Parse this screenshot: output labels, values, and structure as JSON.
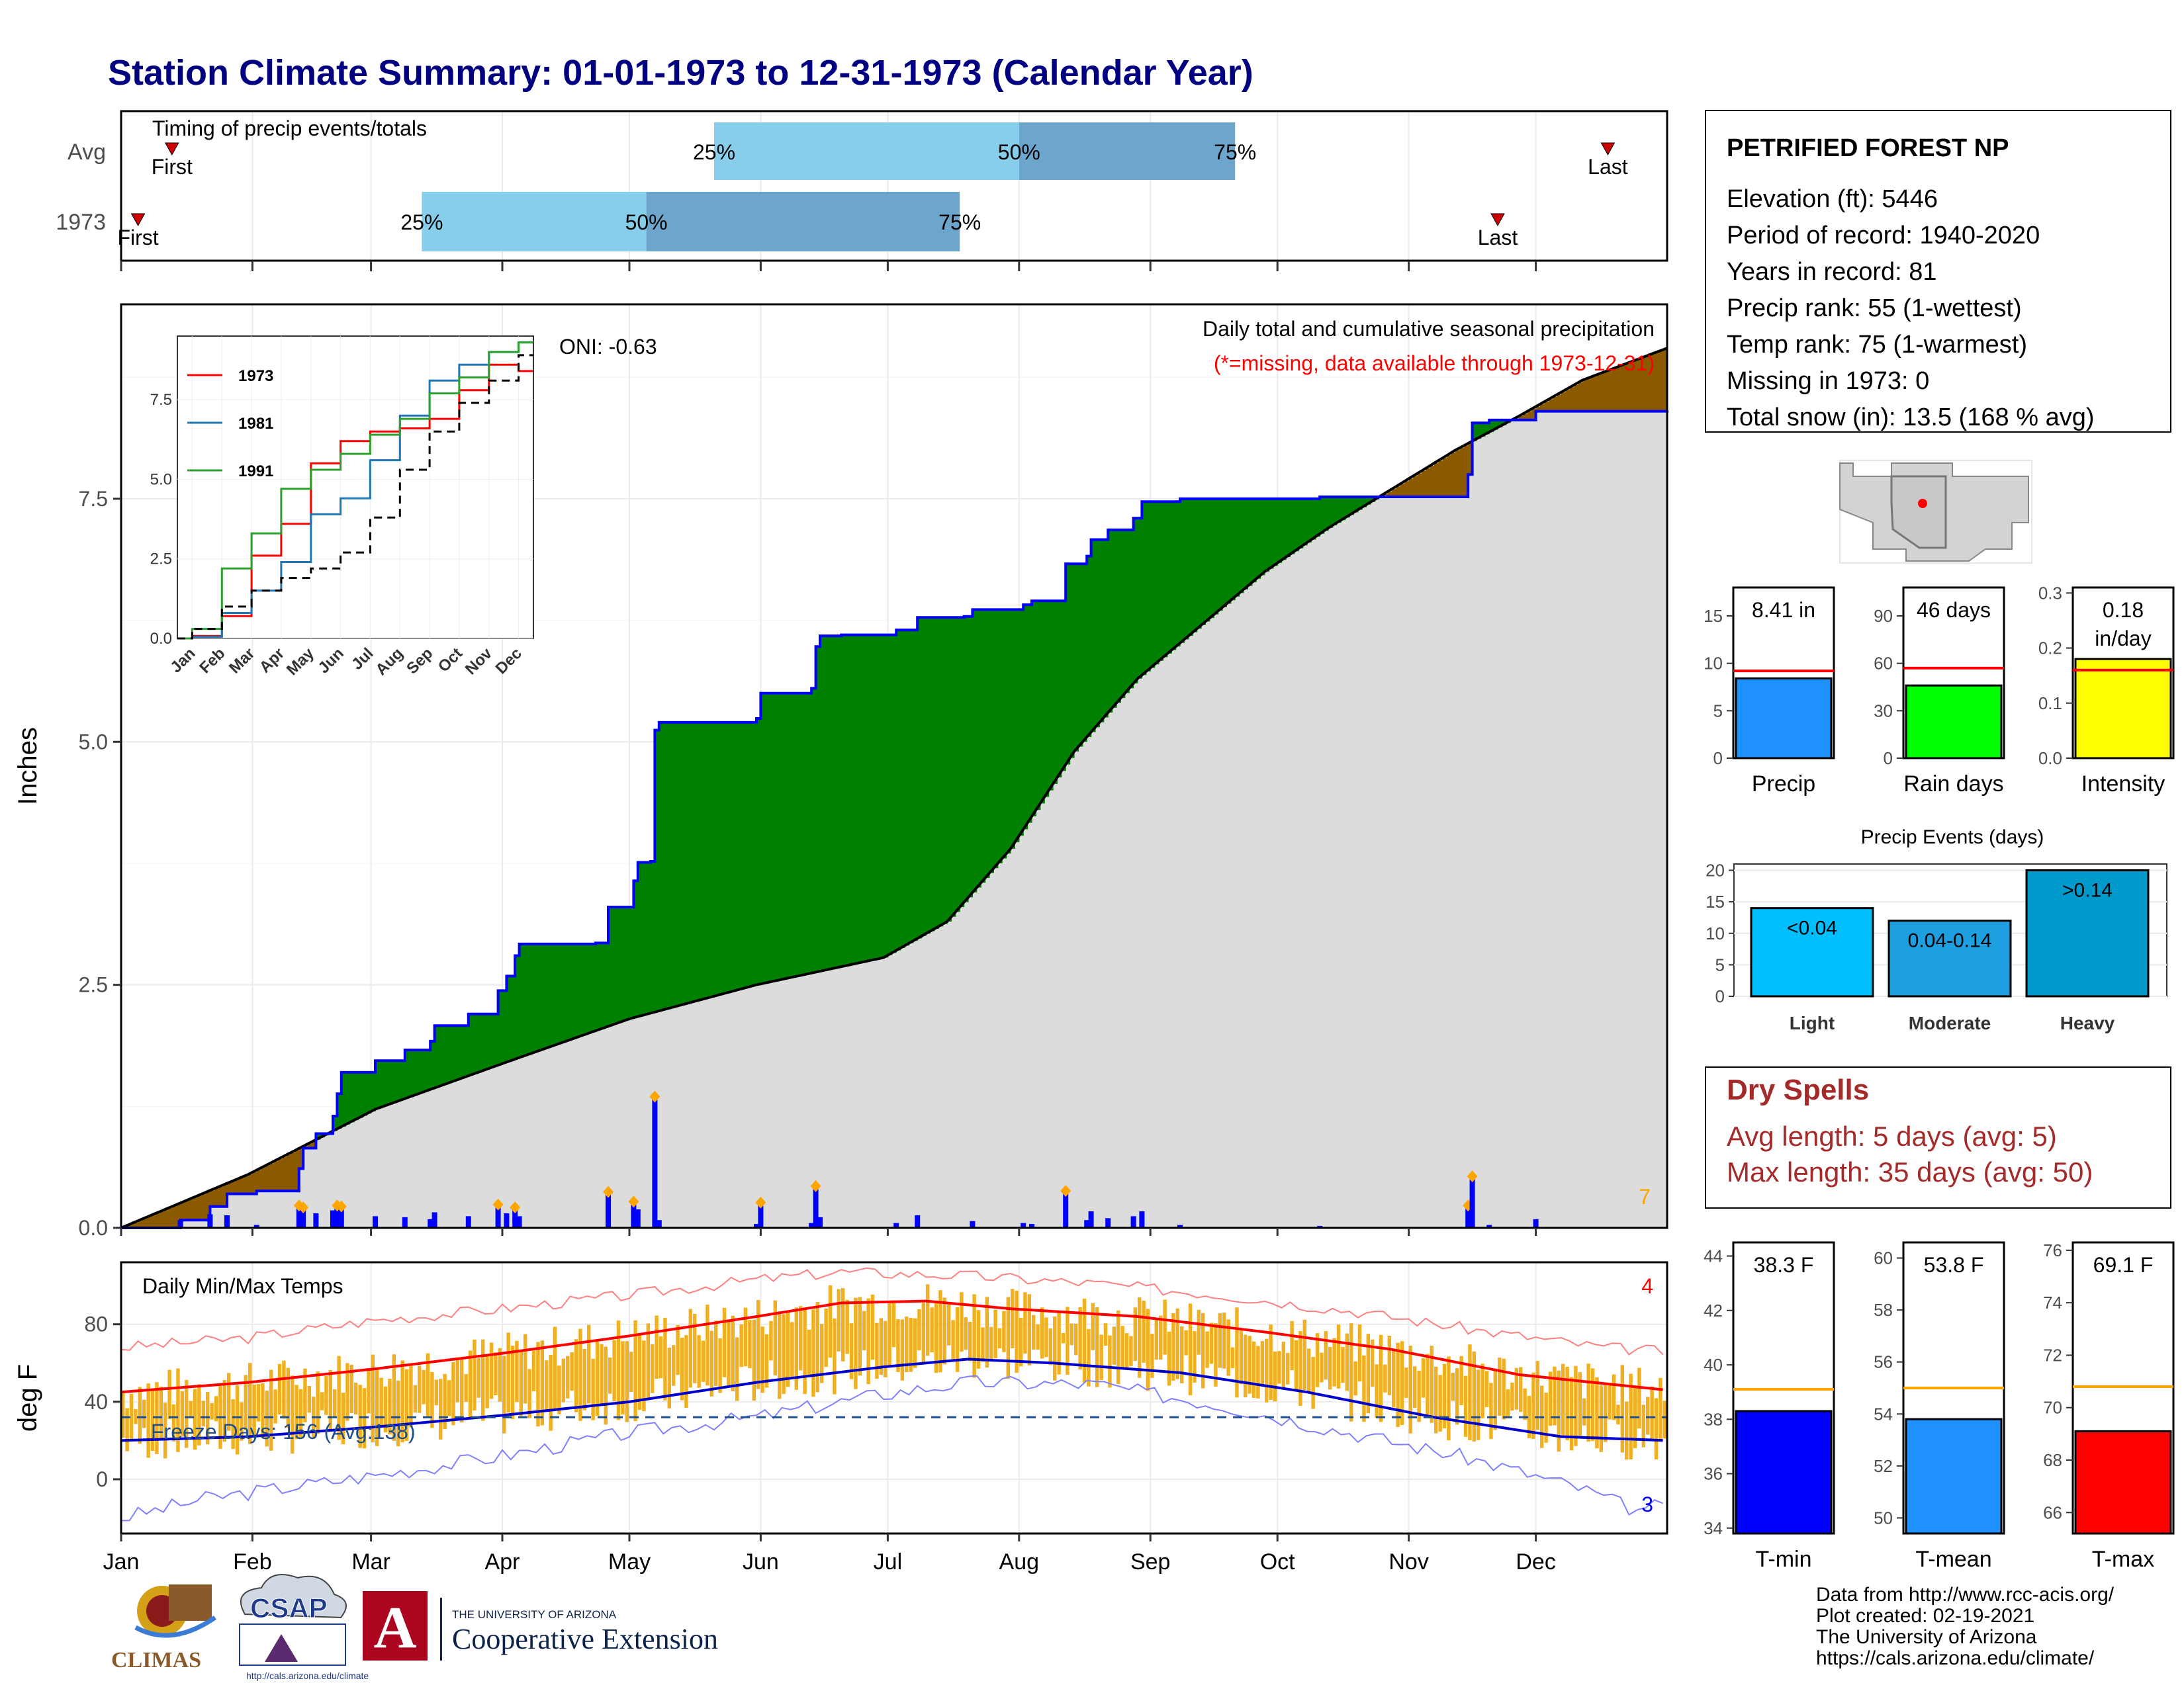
{
  "page": {
    "title": "Station Climate Summary: 01-01-1973 to 12-31-1973 (Calendar Year)",
    "footer_lines": [
      "Data from http://www.rcc-acis.org/",
      "Plot created: 02-19-2021",
      "The University of Arizona",
      "https://cals.arizona.edu/climate/"
    ]
  },
  "colors": {
    "title": "#000080",
    "above_avg": "#008000",
    "below_avg": "#8B5A00",
    "avg_fill": "#DCDCDC",
    "cum_line": "#0000FF",
    "daily_bar": "#0000FF",
    "temp_bar": "#F0B020",
    "tmax_avg": "#FF0000",
    "tmin_avg": "#0000CC",
    "q_light": "#87CEEB",
    "q_dark": "#6CA6CD",
    "red": "#FF0000",
    "orange": "#FFA500"
  },
  "timing": {
    "label": "Timing of precip events/totals",
    "rows": [
      {
        "name": "Avg",
        "first_label": "First",
        "last_label": "Last",
        "first_day": 12,
        "last_day": 351,
        "p25_label": "25%",
        "p50_label": "50%",
        "p75_label": "75%",
        "p25": 140,
        "p50": 212,
        "p75": 263
      },
      {
        "name": "1973",
        "first_label": "First",
        "last_label": "Last",
        "first_day": 4,
        "last_day": 325,
        "p25_label": "25%",
        "p50_label": "50%",
        "p75_label": "75%",
        "p25": 71,
        "p50": 124,
        "p75": 198
      }
    ]
  },
  "station": {
    "name": "PETRIFIED FOREST NP",
    "lines": [
      "Elevation (ft): 5446",
      "Period of record: 1940-2020",
      "Years in record: 81",
      "Precip rank: 55 (1-wettest)",
      "Temp rank: 75 (1-warmest)",
      "Missing in 1973: 0",
      "Total snow (in): 13.5 (168 % avg)"
    ]
  },
  "precip_panel": {
    "ylabel": "Inches",
    "title": "Daily total and cumulative seasonal precipitation",
    "subtitle": "(*=missing, data available through 1973-12-31)",
    "oni": "ONI: -0.63",
    "corner_count": "7",
    "inset_series": [
      "1973",
      "1981",
      "1991"
    ],
    "inset_colors": [
      "#FF0000",
      "#1F77B4",
      "#2CA02C"
    ]
  },
  "temp_panel": {
    "ylabel": "deg F",
    "title": "Daily Min/Max Temps",
    "freeze": "Freeze Days: 156 (Avg:138)",
    "count_top": "4",
    "count_bottom": "3"
  },
  "months": [
    "Jan",
    "Feb",
    "Mar",
    "Apr",
    "May",
    "Jun",
    "Jul",
    "Aug",
    "Sep",
    "Oct",
    "Nov",
    "Dec"
  ],
  "bars": {
    "precip": {
      "value_label": "8.41 in",
      "label": "Precip",
      "value": 8.41,
      "avg": 9.2,
      "ticks": [
        "0",
        "5",
        "10",
        "15"
      ],
      "max": 18,
      "color": "#1E90FF"
    },
    "raindays": {
      "value_label": "46 days",
      "label": "Rain days",
      "value": 46,
      "avg": 57,
      "ticks": [
        "0",
        "30",
        "60",
        "90"
      ],
      "max": 108,
      "color": "#00FF00"
    },
    "intensity": {
      "value_label": "0.18 in/day",
      "label": "Intensity",
      "value": 0.18,
      "avg": 0.16,
      "ticks": [
        "0.0",
        "0.1",
        "0.2",
        "0.3"
      ],
      "max": 0.3,
      "color": "#FFFF00"
    }
  },
  "events": {
    "title": "Precip Events (days)",
    "ticks": [
      "0",
      "5",
      "10",
      "15",
      "20"
    ],
    "items": [
      {
        "label": "Light",
        "value_label": "<0.04",
        "value": 14,
        "color": "#00BFFF"
      },
      {
        "label": "Moderate",
        "value_label": "0.04-0.14",
        "value": 12,
        "color": "#1EA0E0"
      },
      {
        "label": "Heavy",
        "value_label": ">0.14",
        "value": 20,
        "color": "#0099CC"
      }
    ]
  },
  "dry_spells": {
    "title": "Dry Spells",
    "avg_line": "Avg length: 5 days (avg: 5)",
    "max_line": "Max length: 35 days (avg: 50)"
  },
  "temps": {
    "tmin": {
      "value_label": "38.3 F",
      "label": "T-min",
      "value": 38.3,
      "avg": 39.1,
      "min": 33.8,
      "max": 44.5,
      "ticks": [
        "34",
        "36",
        "38",
        "40",
        "42",
        "44"
      ],
      "color": "#0000FF"
    },
    "tmean": {
      "value_label": "53.8 F",
      "label": "T-mean",
      "value": 53.8,
      "avg": 55.0,
      "min": 49.4,
      "max": 60.6,
      "ticks": [
        "50",
        "52",
        "54",
        "56",
        "58",
        "60"
      ],
      "color": "#1E90FF"
    },
    "tmax": {
      "value_label": "69.1 F",
      "label": "T-max",
      "value": 69.1,
      "avg": 70.8,
      "min": 65.2,
      "max": 76.3,
      "ticks": [
        "66",
        "68",
        "70",
        "72",
        "74",
        "76"
      ],
      "color": "#FF0000"
    }
  },
  "logos": {
    "climas": "CLIMAS",
    "csap": "CSAP",
    "csap_url": "http://cals.arizona.edu/climate",
    "ua_line1": "THE UNIVERSITY OF ARIZONA",
    "ua_line2": "Cooperative Extension"
  },
  "chart_data": [
    {
      "type": "line",
      "title": "Daily total and cumulative seasonal precipitation",
      "ylabel": "Inches",
      "ylim": [
        0,
        9.5
      ],
      "x_unit": "day of year 1973",
      "series": [
        {
          "name": "1973 cumulative",
          "points": [
            [
              0,
              0
            ],
            [
              14,
              0.08
            ],
            [
              21,
              0.22
            ],
            [
              25,
              0.35
            ],
            [
              32,
              0.38
            ],
            [
              42,
              0.61
            ],
            [
              43,
              0.82
            ],
            [
              46,
              0.97
            ],
            [
              50,
              1.15
            ],
            [
              51,
              1.38
            ],
            [
              52,
              1.6
            ],
            [
              60,
              1.72
            ],
            [
              67,
              1.83
            ],
            [
              73,
              1.92
            ],
            [
              74,
              2.08
            ],
            [
              82,
              2.2
            ],
            [
              89,
              2.44
            ],
            [
              91,
              2.59
            ],
            [
              93,
              2.8
            ],
            [
              94,
              2.92
            ],
            [
              112,
              2.93
            ],
            [
              115,
              3.3
            ],
            [
              121,
              3.57
            ],
            [
              122,
              3.76
            ],
            [
              125,
              3.77
            ],
            [
              126,
              5.12
            ],
            [
              127,
              5.2
            ],
            [
              150,
              5.24
            ],
            [
              151,
              5.5
            ],
            [
              163,
              5.55
            ],
            [
              164,
              5.98
            ],
            [
              165,
              6.09
            ],
            [
              170,
              6.1
            ],
            [
              183,
              6.15
            ],
            [
              188,
              6.28
            ],
            [
              199,
              6.29
            ],
            [
              201,
              6.36
            ],
            [
              213,
              6.41
            ],
            [
              215,
              6.45
            ],
            [
              223,
              6.83
            ],
            [
              228,
              6.91
            ],
            [
              229,
              7.08
            ],
            [
              233,
              7.18
            ],
            [
              239,
              7.3
            ],
            [
              241,
              7.47
            ],
            [
              250,
              7.5
            ],
            [
              258,
              7.5
            ],
            [
              283,
              7.52
            ],
            [
              310,
              7.52
            ],
            [
              318,
              7.75
            ],
            [
              319,
              8.28
            ],
            [
              323,
              8.31
            ],
            [
              334,
              8.4
            ],
            [
              365,
              8.41
            ]
          ]
        },
        {
          "name": "average cumulative",
          "points": [
            [
              0,
              0
            ],
            [
              30,
              0.55
            ],
            [
              60,
              1.22
            ],
            [
              90,
              1.69
            ],
            [
              120,
              2.15
            ],
            [
              150,
              2.5
            ],
            [
              180,
              2.78
            ],
            [
              195,
              3.15
            ],
            [
              210,
              3.9
            ],
            [
              225,
              4.9
            ],
            [
              240,
              5.65
            ],
            [
              255,
              6.2
            ],
            [
              270,
              6.75
            ],
            [
              285,
              7.2
            ],
            [
              300,
              7.6
            ],
            [
              315,
              8.0
            ],
            [
              330,
              8.35
            ],
            [
              345,
              8.72
            ],
            [
              365,
              9.05
            ]
          ]
        }
      ],
      "daily_precip": [
        [
          14,
          0.08
        ],
        [
          21,
          0.14
        ],
        [
          25,
          0.13
        ],
        [
          32,
          0.03
        ],
        [
          42,
          0.23
        ],
        [
          43,
          0.21
        ],
        [
          46,
          0.15
        ],
        [
          50,
          0.18
        ],
        [
          51,
          0.23
        ],
        [
          52,
          0.22
        ],
        [
          60,
          0.12
        ],
        [
          67,
          0.11
        ],
        [
          73,
          0.09
        ],
        [
          74,
          0.16
        ],
        [
          82,
          0.12
        ],
        [
          89,
          0.24
        ],
        [
          91,
          0.15
        ],
        [
          93,
          0.21
        ],
        [
          94,
          0.12
        ],
        [
          112,
          0.01
        ],
        [
          115,
          0.37
        ],
        [
          121,
          0.27
        ],
        [
          122,
          0.19
        ],
        [
          125,
          0.01
        ],
        [
          126,
          1.35
        ],
        [
          127,
          0.08
        ],
        [
          150,
          0.04
        ],
        [
          151,
          0.26
        ],
        [
          163,
          0.05
        ],
        [
          164,
          0.43
        ],
        [
          165,
          0.11
        ],
        [
          170,
          0.01
        ],
        [
          183,
          0.05
        ],
        [
          188,
          0.13
        ],
        [
          199,
          0.01
        ],
        [
          201,
          0.07
        ],
        [
          213,
          0.05
        ],
        [
          215,
          0.04
        ],
        [
          223,
          0.38
        ],
        [
          228,
          0.08
        ],
        [
          229,
          0.17
        ],
        [
          233,
          0.1
        ],
        [
          239,
          0.12
        ],
        [
          241,
          0.17
        ],
        [
          250,
          0.03
        ],
        [
          283,
          0.02
        ],
        [
          318,
          0.23
        ],
        [
          319,
          0.53
        ],
        [
          323,
          0.03
        ],
        [
          334,
          0.09
        ]
      ]
    },
    {
      "type": "line",
      "title": "Daily Min/Max Temps",
      "ylabel": "deg F",
      "ylim": [
        -28,
        112
      ],
      "x_unit": "day of year 1973",
      "series": [
        {
          "name": "avg tmax",
          "points": [
            [
              0,
              45
            ],
            [
              30,
              50
            ],
            [
              60,
              57
            ],
            [
              90,
              65
            ],
            [
              120,
              74
            ],
            [
              150,
              84
            ],
            [
              170,
              91
            ],
            [
              190,
              92
            ],
            [
              210,
              88
            ],
            [
              240,
              84
            ],
            [
              270,
              76
            ],
            [
              300,
              67
            ],
            [
              330,
              54
            ],
            [
              365,
              46
            ]
          ]
        },
        {
          "name": "avg tmin",
          "points": [
            [
              0,
              20
            ],
            [
              30,
              22
            ],
            [
              60,
              27
            ],
            [
              90,
              33
            ],
            [
              120,
              40
            ],
            [
              150,
              50
            ],
            [
              180,
              58
            ],
            [
              200,
              62
            ],
            [
              220,
              60
            ],
            [
              250,
              55
            ],
            [
              280,
              45
            ],
            [
              310,
              32
            ],
            [
              340,
              22
            ],
            [
              365,
              20
            ]
          ]
        },
        {
          "name": "record high",
          "points": [
            [
              0,
              68
            ],
            [
              30,
              73
            ],
            [
              60,
              82
            ],
            [
              90,
              88
            ],
            [
              120,
              95
            ],
            [
              150,
              103
            ],
            [
              170,
              107
            ],
            [
              200,
              105
            ],
            [
              230,
              101
            ],
            [
              260,
              95
            ],
            [
              290,
              87
            ],
            [
              320,
              77
            ],
            [
              350,
              68
            ],
            [
              365,
              66
            ]
          ]
        },
        {
          "name": "record low",
          "points": [
            [
              0,
              -20
            ],
            [
              20,
              -10
            ],
            [
              60,
              2
            ],
            [
              90,
              12
            ],
            [
              120,
              24
            ],
            [
              150,
              32
            ],
            [
              180,
              44
            ],
            [
              200,
              50
            ],
            [
              230,
              49
            ],
            [
              260,
              38
            ],
            [
              290,
              24
            ],
            [
              320,
              10
            ],
            [
              345,
              -5
            ],
            [
              360,
              -18
            ],
            [
              365,
              -8
            ]
          ]
        }
      ],
      "freeze_threshold": 32
    },
    {
      "type": "line",
      "title": "",
      "x": [
        "Jan",
        "Feb",
        "Mar",
        "Apr",
        "May",
        "Jun",
        "Jul",
        "Aug",
        "Sep",
        "Oct",
        "Nov",
        "Dec"
      ],
      "ylim": [
        0,
        9.5
      ],
      "series": [
        {
          "name": "1973",
          "values": [
            0.08,
            0.7,
            2.6,
            3.6,
            5.5,
            6.2,
            6.5,
            6.6,
            6.9,
            7.8,
            8.6,
            8.4
          ]
        },
        {
          "name": "1981",
          "values": [
            0.05,
            0.8,
            1.5,
            2.4,
            3.9,
            4.4,
            5.6,
            7.0,
            8.1,
            8.6,
            9.0,
            9.3
          ]
        },
        {
          "name": "1991",
          "values": [
            0.3,
            2.2,
            3.3,
            4.7,
            5.3,
            5.8,
            6.4,
            6.9,
            7.7,
            8.2,
            9.0,
            9.3
          ]
        },
        {
          "name": "",
          "values": [
            0.3,
            1.0,
            1.5,
            1.9,
            2.2,
            2.7,
            3.8,
            5.3,
            6.5,
            7.4,
            8.1,
            8.9
          ]
        }
      ]
    }
  ]
}
